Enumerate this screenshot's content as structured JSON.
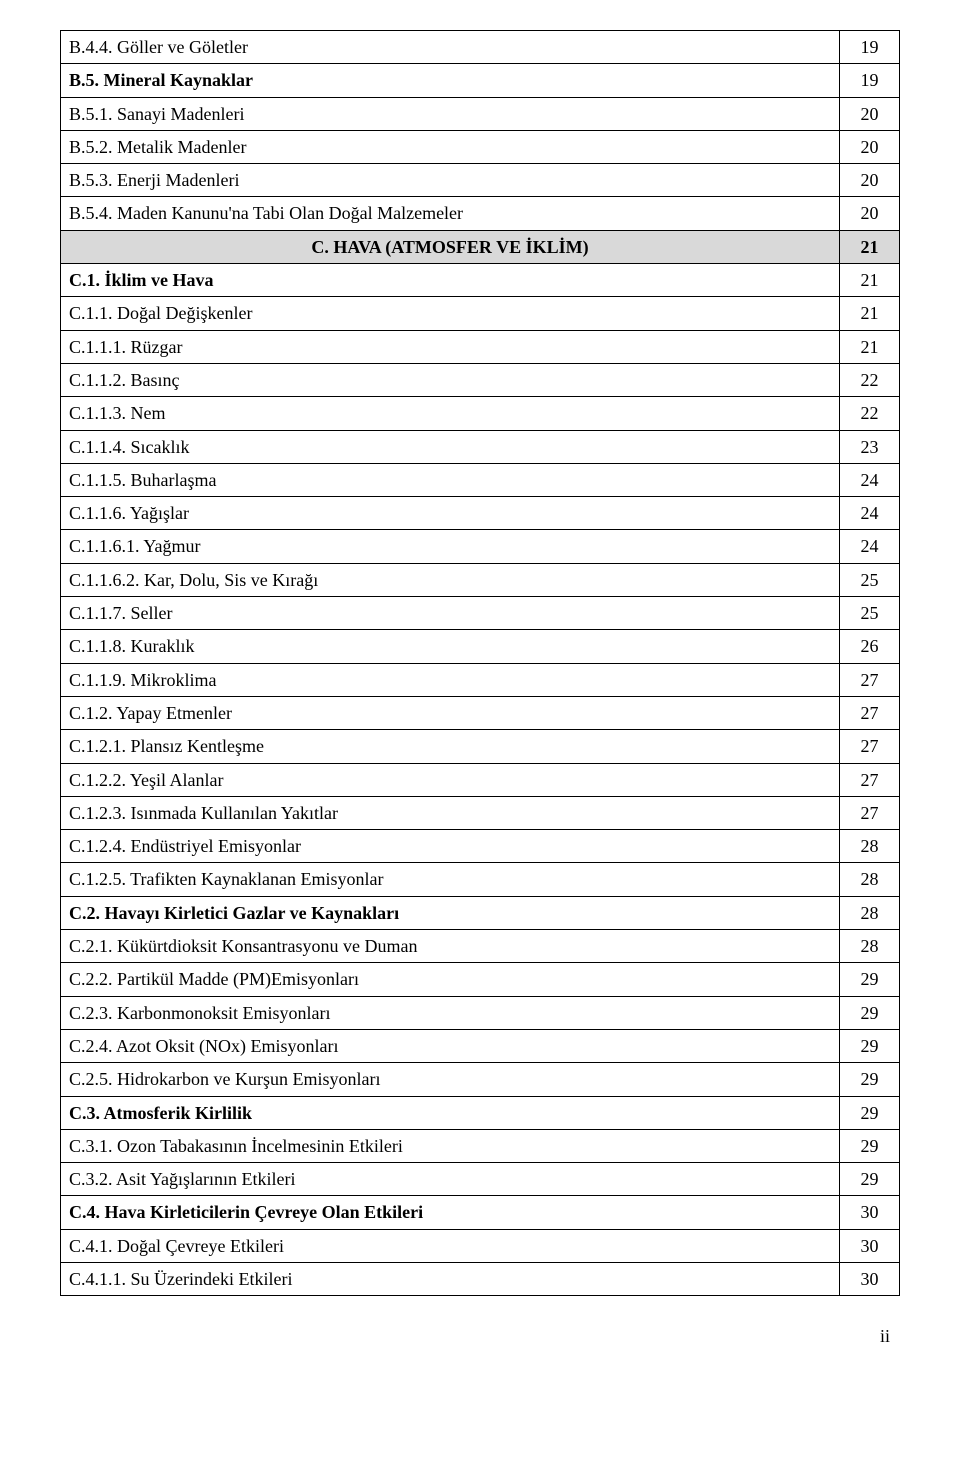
{
  "rows": [
    {
      "label": "B.4.4. Göller ve Göletler",
      "page": "19",
      "bold": false
    },
    {
      "label": "B.5. Mineral Kaynaklar",
      "page": "19",
      "bold": true
    },
    {
      "label": "B.5.1. Sanayi Madenleri",
      "page": "20",
      "bold": false
    },
    {
      "label": "B.5.2. Metalik Madenler",
      "page": "20",
      "bold": false
    },
    {
      "label": "B.5.3. Enerji Madenleri",
      "page": "20",
      "bold": false
    },
    {
      "label": "B.5.4. Maden Kanunu'na  Tabi Olan Doğal Malzemeler",
      "page": "20",
      "bold": false
    }
  ],
  "section": {
    "label": "C. HAVA (ATMOSFER VE İKLİM)",
    "page": "21"
  },
  "rows2": [
    {
      "label": "C.1. İklim ve Hava",
      "page": "21",
      "bold": true
    },
    {
      "label": "C.1.1. Doğal Değişkenler",
      "page": "21",
      "bold": false
    },
    {
      "label": "C.1.1.1. Rüzgar",
      "page": "21",
      "bold": false
    },
    {
      "label": "C.1.1.2. Basınç",
      "page": "22",
      "bold": false
    },
    {
      "label": "C.1.1.3. Nem",
      "page": "22",
      "bold": false
    },
    {
      "label": "C.1.1.4. Sıcaklık",
      "page": "23",
      "bold": false
    },
    {
      "label": "C.1.1.5. Buharlaşma",
      "page": "24",
      "bold": false
    },
    {
      "label": "C.1.1.6. Yağışlar",
      "page": "24",
      "bold": false
    },
    {
      "label": "C.1.1.6.1. Yağmur",
      "page": "24",
      "bold": false
    },
    {
      "label": "C.1.1.6.2. Kar, Dolu, Sis ve Kırağı",
      "page": "25",
      "bold": false
    },
    {
      "label": "C.1.1.7. Seller",
      "page": "25",
      "bold": false
    },
    {
      "label": "C.1.1.8. Kuraklık",
      "page": "26",
      "bold": false
    },
    {
      "label": "C.1.1.9. Mikroklima",
      "page": "27",
      "bold": false
    },
    {
      "label": "C.1.2. Yapay Etmenler",
      "page": "27",
      "bold": false
    },
    {
      "label": "C.1.2.1. Plansız Kentleşme",
      "page": "27",
      "bold": false
    },
    {
      "label": "C.1.2.2. Yeşil Alanlar",
      "page": "27",
      "bold": false
    },
    {
      "label": "C.1.2.3. Isınmada Kullanılan Yakıtlar",
      "page": "27",
      "bold": false
    },
    {
      "label": "C.1.2.4. Endüstriyel Emisyonlar",
      "page": "28",
      "bold": false
    },
    {
      "label": "C.1.2.5. Trafikten Kaynaklanan Emisyonlar",
      "page": "28",
      "bold": false
    },
    {
      "label": "C.2. Havayı Kirletici Gazlar ve Kaynakları",
      "page": "28",
      "bold": true
    },
    {
      "label": "C.2.1. Kükürtdioksit Konsantrasyonu ve Duman",
      "page": "28",
      "bold": false
    },
    {
      "label": "C.2.2. Partikül Madde (PM)Emisyonları",
      "page": "29",
      "bold": false
    },
    {
      "label": "C.2.3. Karbonmonoksit Emisyonları",
      "page": "29",
      "bold": false
    },
    {
      "label": "C.2.4. Azot Oksit (NOx) Emisyonları",
      "page": "29",
      "bold": false
    },
    {
      "label": "C.2.5. Hidrokarbon ve Kurşun Emisyonları",
      "page": "29",
      "bold": false
    },
    {
      "label": "C.3. Atmosferik Kirlilik",
      "page": "29",
      "bold": true
    },
    {
      "label": "C.3.1. Ozon Tabakasının İncelmesinin Etkileri",
      "page": "29",
      "bold": false
    },
    {
      "label": "C.3.2. Asit Yağışlarının  Etkileri",
      "page": "29",
      "bold": false
    },
    {
      "label": "C.4. Hava Kirleticilerin Çevreye Olan Etkileri",
      "page": "30",
      "bold": true
    },
    {
      "label": "C.4.1. Doğal Çevreye  Etkileri",
      "page": "30",
      "bold": false
    },
    {
      "label": "C.4.1.1. Su Üzerindeki Etkileri",
      "page": "30",
      "bold": false
    }
  ],
  "footer": "ii"
}
